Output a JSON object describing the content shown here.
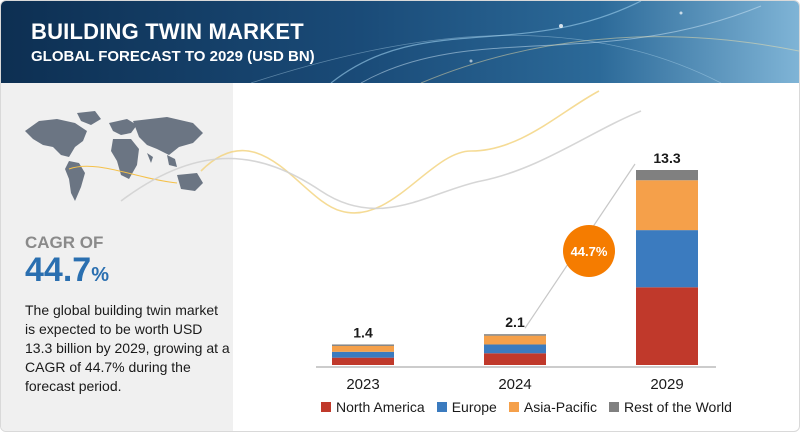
{
  "header": {
    "title": "BUILDING TWIN MARKET",
    "subtitle": "GLOBAL FORECAST TO 2029 (USD BN)"
  },
  "left_panel": {
    "cagr_label": "CAGR OF",
    "cagr_value": "44.7",
    "cagr_unit": "%",
    "description": "The global building twin market is expected to be worth USD 13.3 billion by 2029, growing at a CAGR of 44.7% during the forecast period."
  },
  "chart_data": {
    "type": "bar",
    "stacked": true,
    "categories": [
      "2023",
      "2024",
      "2029"
    ],
    "totals": [
      1.4,
      2.1,
      13.3
    ],
    "series": [
      {
        "name": "North America",
        "color": "#c0392b",
        "values": [
          0.5,
          0.8,
          5.3
        ]
      },
      {
        "name": "Europe",
        "color": "#3b7bbf",
        "values": [
          0.4,
          0.6,
          3.9
        ]
      },
      {
        "name": "Asia-Pacific",
        "color": "#f5a04a",
        "values": [
          0.4,
          0.6,
          3.4
        ]
      },
      {
        "name": "Rest of the World",
        "color": "#808080",
        "values": [
          0.1,
          0.1,
          0.7
        ]
      }
    ],
    "annotation": "44.7%",
    "legend_position": "bottom",
    "grid": false
  },
  "colors": {
    "header_dark": "#0d2f52",
    "accent_blue": "#2a6fb0",
    "badge_orange": "#f57c00"
  }
}
